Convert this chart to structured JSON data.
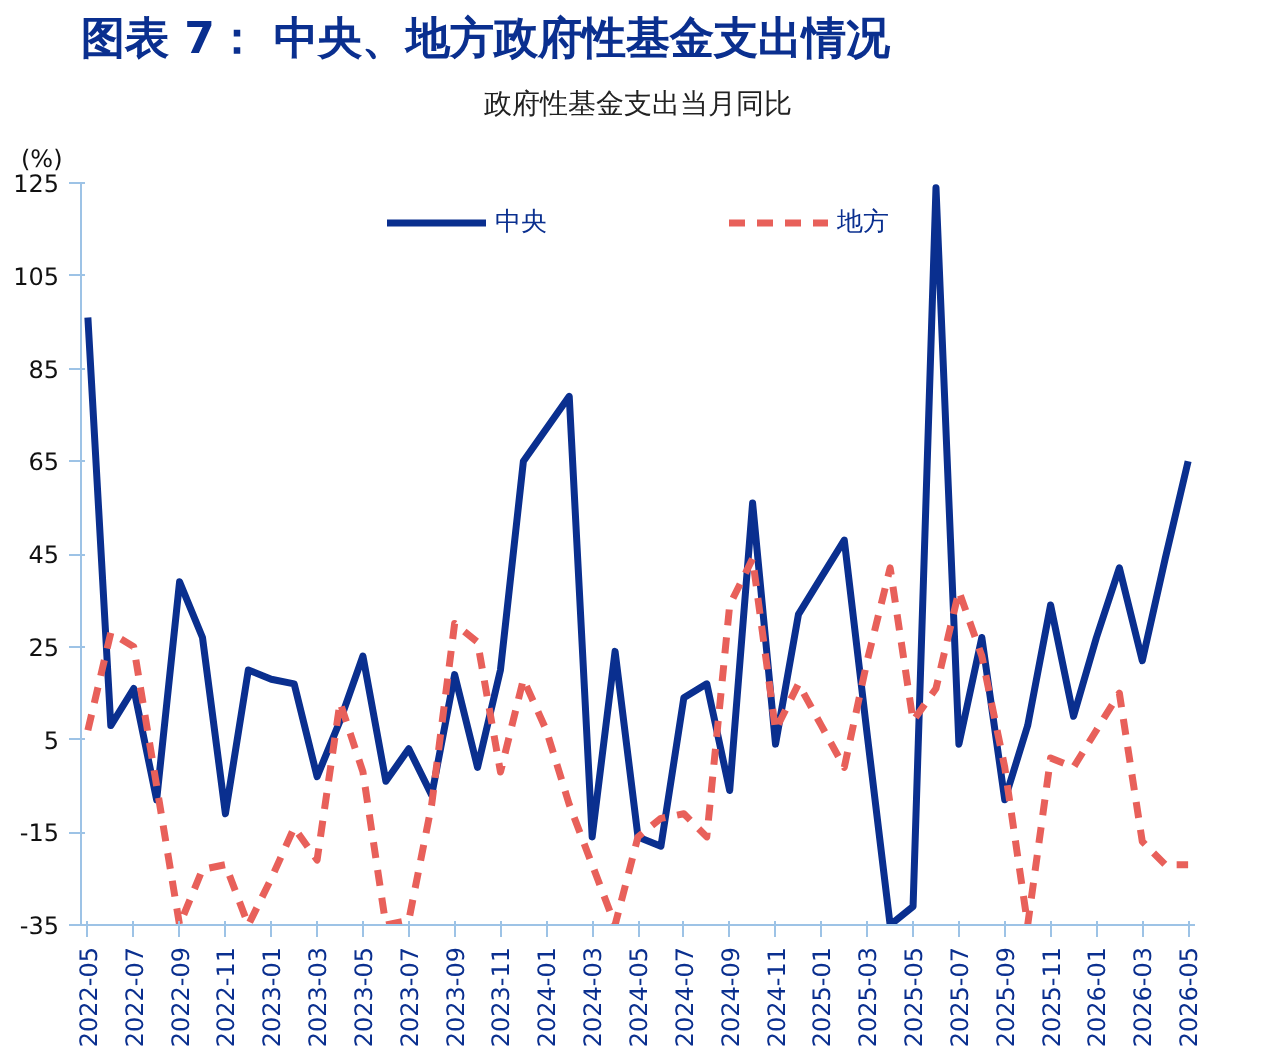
{
  "chart_data": {
    "type": "line",
    "title": "图表 7：  中央、地方政府性基金支出情况",
    "subtitle": "政府性基金支出当月同比",
    "ylabel": "(%)",
    "categories": [
      "2022-05",
      null,
      "2022-07",
      null,
      "2022-09",
      null,
      "2022-11",
      null,
      "2023-01",
      null,
      "2023-03",
      null,
      "2023-05",
      null,
      "2023-07",
      null,
      "2023-09",
      null,
      "2023-11",
      null,
      "2024-01",
      null,
      "2024-03",
      null,
      "2024-05",
      null,
      "2024-07",
      null,
      "2024-09",
      null,
      "2024-11",
      null,
      "2025-01",
      null,
      "2025-03",
      null,
      "2025-05",
      null,
      "2025-07",
      null,
      "2025-09",
      null,
      "2025-11",
      null,
      "2026-01",
      null,
      "2026-03",
      null,
      "2026-05"
    ],
    "series": [
      {
        "name": "中央",
        "color": "#0a2f8f",
        "line_style": "solid",
        "values": [
          96,
          8,
          16,
          -8,
          39,
          27,
          -11,
          20,
          18,
          17,
          -3,
          9,
          23,
          -4,
          3,
          -7,
          19,
          -1,
          20,
          65,
          72,
          79,
          -16,
          24,
          -16,
          -18,
          14,
          17,
          -6,
          56,
          4,
          32,
          40,
          48,
          6,
          -35,
          -31,
          124,
          4,
          27,
          -8,
          8,
          34,
          10,
          27,
          42,
          22,
          44,
          65
        ]
      },
      {
        "name": "地方",
        "color": "#e8605a",
        "line_style": "dashed",
        "values": [
          7,
          28,
          25,
          -5,
          -35,
          -23,
          -22,
          -35,
          -25,
          -14,
          -21,
          13,
          -2,
          -35,
          -34,
          -9,
          30,
          26,
          -2,
          18,
          7,
          -9,
          -22,
          -35,
          -16,
          -12,
          -11,
          -16,
          34,
          44,
          7,
          17,
          8,
          -1,
          22,
          42,
          9,
          16,
          37,
          23,
          -1,
          -35,
          1,
          -1,
          7,
          15,
          -17,
          -22,
          -22
        ]
      }
    ],
    "ylim": [
      -35,
      125
    ],
    "yticks": [
      -35,
      -15,
      5,
      25,
      45,
      65,
      85,
      105,
      125
    ],
    "grid": false,
    "legend": "top"
  }
}
